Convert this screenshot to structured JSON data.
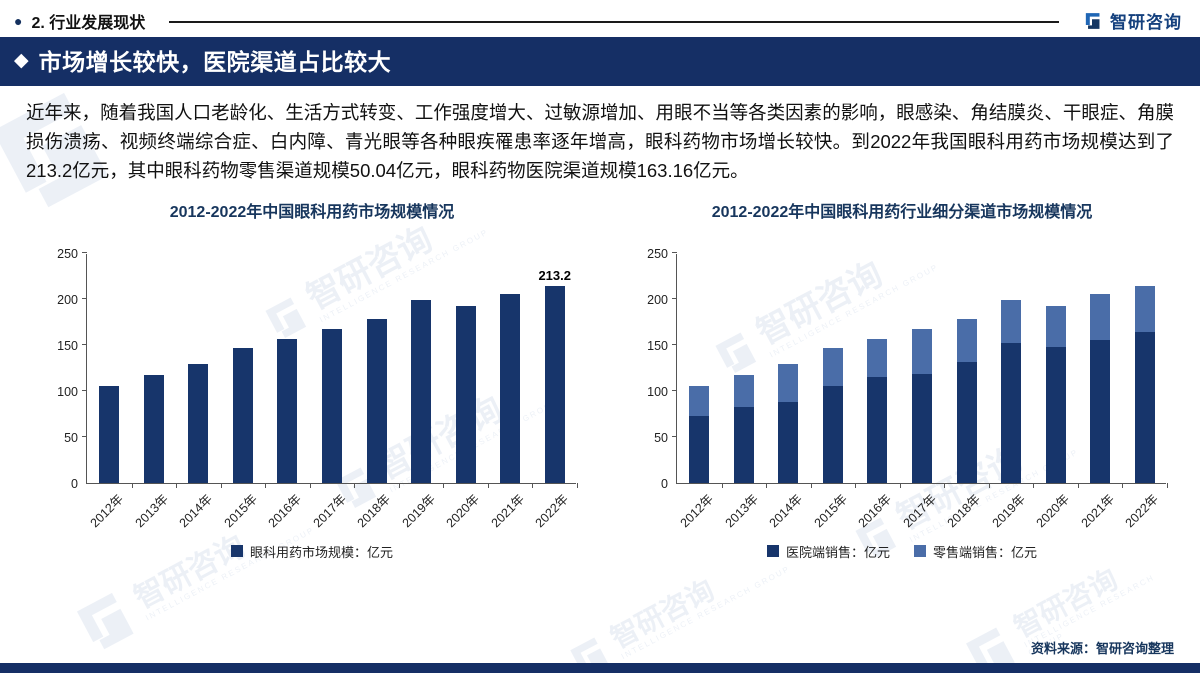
{
  "header": {
    "bullet": "●",
    "section_label": "2. 行业发展现状",
    "logo_text": "智研咨询"
  },
  "banner": {
    "icon": "◆",
    "title": "市场增长较快，医院渠道占比较大"
  },
  "paragraph": "近年来，随着我国人口老龄化、生活方式转变、工作强度增大、过敏源增加、用眼不当等各类因素的影响，眼感染、角结膜炎、干眼症、角膜损伤溃疡、视频终端综合症、白内障、青光眼等各种眼疾罹患率逐年增高，眼科药物市场增长较快。到2022年我国眼科用药市场规模达到了213.2亿元，其中眼科药物零售渠道规模50.04亿元，眼科药物医院渠道规模163.16亿元。",
  "colors": {
    "navy": "#152f65",
    "bar_dark": "#17356b",
    "bar_light": "#4a6da8",
    "title_navy": "#17365d"
  },
  "chart_data": [
    {
      "type": "bar",
      "title": "2012-2022年中国眼科用药市场规模情况",
      "categories": [
        "2012年",
        "2013年",
        "2014年",
        "2015年",
        "2016年",
        "2017年",
        "2018年",
        "2019年",
        "2020年",
        "2021年",
        "2022年"
      ],
      "values": [
        105,
        117,
        129,
        146,
        156,
        167,
        178,
        199,
        192,
        205,
        213.2
      ],
      "ylim": [
        0,
        250
      ],
      "yticks": [
        0,
        50,
        100,
        150,
        200,
        250
      ],
      "grid": false,
      "legend_position": "bottom",
      "legend": [
        {
          "label": "眼科用药市场规模：亿元",
          "color": "#17356b"
        }
      ],
      "data_labels": [
        {
          "index": 10,
          "text": "213.2"
        }
      ]
    },
    {
      "type": "bar",
      "stacked": true,
      "title": "2012-2022年中国眼科用药行业细分渠道市场规模情况",
      "categories": [
        "2012年",
        "2013年",
        "2014年",
        "2015年",
        "2016年",
        "2017年",
        "2018年",
        "2019年",
        "2020年",
        "2021年",
        "2022年"
      ],
      "series": [
        {
          "name": "医院端销售：亿元",
          "color": "#17356b",
          "values": [
            72,
            82,
            88,
            105,
            115,
            118,
            131,
            152,
            147,
            155,
            163.16
          ]
        },
        {
          "name": "零售端销售：亿元",
          "color": "#4a6da8",
          "values": [
            33,
            35,
            41,
            41,
            41,
            49,
            47,
            47,
            45,
            50,
            50.04
          ]
        }
      ],
      "ylim": [
        0,
        250
      ],
      "yticks": [
        0,
        50,
        100,
        150,
        200,
        250
      ],
      "grid": false,
      "legend_position": "bottom",
      "data_labels": []
    }
  ],
  "source": "资料来源：智研咨询整理",
  "watermark": {
    "text": "智研咨询",
    "subtext": "INTELLIGENCE RESEARCH GROUP"
  }
}
